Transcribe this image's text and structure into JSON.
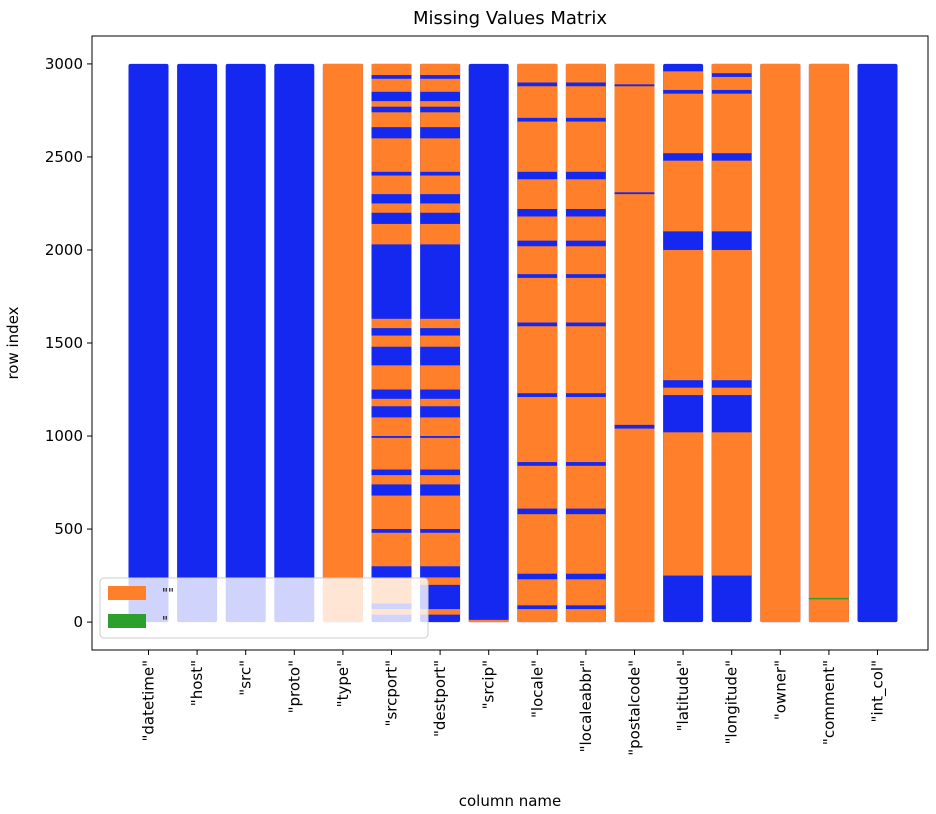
{
  "chart_data": {
    "type": "heatmap",
    "title": "Missing Values Matrix",
    "xlabel": "column name",
    "ylabel": "row index",
    "ylim": [
      -150,
      3150
    ],
    "yticks": [
      0,
      500,
      1000,
      1500,
      2000,
      2500,
      3000
    ],
    "n_rows": 3000,
    "grid": false,
    "legend_position": "lower-left",
    "colors": {
      "present": "#1428f0",
      "missing": "#ff7f2a",
      "empty_string": "#2ca02c"
    },
    "legend": [
      {
        "label": "\"\"",
        "color": "#ff7f2a"
      },
      {
        "label": "\"",
        "color": "#2ca02c"
      }
    ],
    "columns": [
      {
        "name": "\"datetime\"",
        "missing": []
      },
      {
        "name": "\"host\"",
        "missing": []
      },
      {
        "name": "\"src\"",
        "missing": []
      },
      {
        "name": "\"proto\"",
        "missing": []
      },
      {
        "name": "\"type\"",
        "missing": [
          [
            0,
            3000
          ]
        ]
      },
      {
        "name": "\"srcport\"",
        "missing": [
          [
            2940,
            3000
          ],
          [
            2850,
            2920
          ],
          [
            2770,
            2800
          ],
          [
            2660,
            2740
          ],
          [
            2420,
            2600
          ],
          [
            2300,
            2400
          ],
          [
            2200,
            2250
          ],
          [
            2030,
            2140
          ],
          [
            1580,
            1630
          ],
          [
            1480,
            1540
          ],
          [
            1250,
            1380
          ],
          [
            1160,
            1200
          ],
          [
            1000,
            1100
          ],
          [
            820,
            990
          ],
          [
            740,
            790
          ],
          [
            500,
            680
          ],
          [
            300,
            480
          ],
          [
            100,
            240
          ],
          [
            40,
            70
          ]
        ]
      },
      {
        "name": "\"destport\"",
        "missing": [
          [
            2940,
            3000
          ],
          [
            2850,
            2920
          ],
          [
            2770,
            2800
          ],
          [
            2660,
            2740
          ],
          [
            2420,
            2600
          ],
          [
            2300,
            2400
          ],
          [
            2200,
            2250
          ],
          [
            2030,
            2140
          ],
          [
            1580,
            1630
          ],
          [
            1480,
            1540
          ],
          [
            1250,
            1380
          ],
          [
            1160,
            1200
          ],
          [
            1000,
            1100
          ],
          [
            820,
            990
          ],
          [
            740,
            790
          ],
          [
            500,
            680
          ],
          [
            300,
            480
          ],
          [
            200,
            240
          ],
          [
            40,
            70
          ]
        ]
      },
      {
        "name": "\"srcip\"",
        "missing": [
          [
            0,
            12
          ]
        ]
      },
      {
        "name": "\"locale\"",
        "missing": [
          [
            2900,
            3000
          ],
          [
            2710,
            2880
          ],
          [
            2420,
            2690
          ],
          [
            2220,
            2380
          ],
          [
            2050,
            2180
          ],
          [
            1870,
            2020
          ],
          [
            1610,
            1850
          ],
          [
            1230,
            1590
          ],
          [
            860,
            1210
          ],
          [
            610,
            840
          ],
          [
            260,
            580
          ],
          [
            90,
            230
          ],
          [
            0,
            70
          ]
        ]
      },
      {
        "name": "\"localeabbr\"",
        "missing": [
          [
            2900,
            3000
          ],
          [
            2710,
            2880
          ],
          [
            2420,
            2690
          ],
          [
            2220,
            2380
          ],
          [
            2050,
            2180
          ],
          [
            1870,
            2020
          ],
          [
            1610,
            1850
          ],
          [
            1230,
            1590
          ],
          [
            860,
            1210
          ],
          [
            610,
            840
          ],
          [
            260,
            580
          ],
          [
            90,
            230
          ],
          [
            0,
            70
          ]
        ]
      },
      {
        "name": "\"postalcode\"",
        "missing": [
          [
            2890,
            3000
          ],
          [
            2310,
            2880
          ],
          [
            1060,
            2300
          ],
          [
            0,
            1040
          ]
        ]
      },
      {
        "name": "\"latitude\"",
        "missing": [
          [
            2860,
            2960
          ],
          [
            2520,
            2840
          ],
          [
            2100,
            2480
          ],
          [
            1300,
            2000
          ],
          [
            1220,
            1260
          ],
          [
            250,
            1020
          ]
        ]
      },
      {
        "name": "\"longitude\"",
        "missing": [
          [
            2950,
            3000
          ],
          [
            2860,
            2930
          ],
          [
            2520,
            2840
          ],
          [
            2100,
            2480
          ],
          [
            1300,
            2000
          ],
          [
            1220,
            1260
          ],
          [
            250,
            1020
          ]
        ]
      },
      {
        "name": "\"owner\"",
        "missing": [
          [
            0,
            3000
          ]
        ]
      },
      {
        "name": "\"comment\"",
        "missing": [
          [
            0,
            3000
          ]
        ],
        "empty_string": [
          [
            125,
            130
          ]
        ]
      },
      {
        "name": "\"int_col\"",
        "missing": []
      }
    ]
  }
}
